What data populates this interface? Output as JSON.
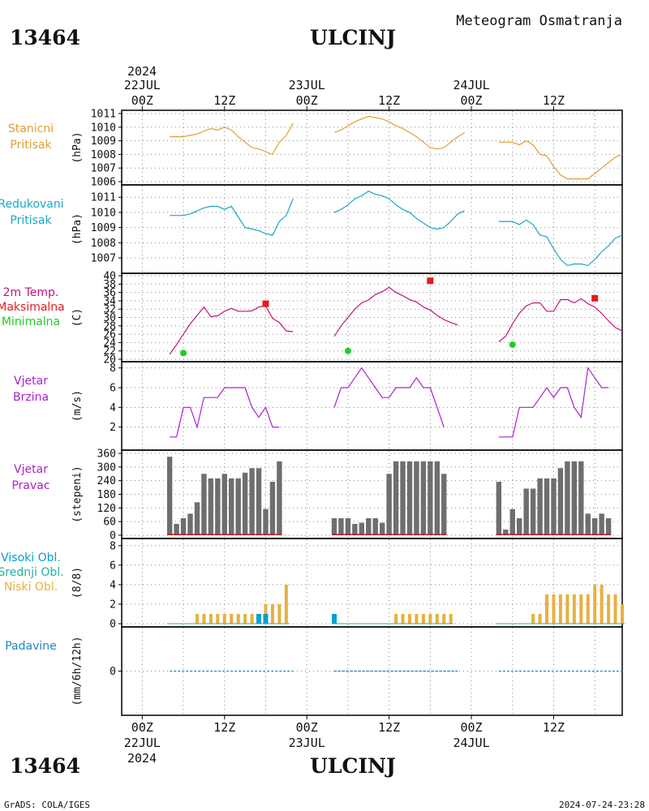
{
  "header": {
    "station_id": "13464",
    "station_name": "ULCINJ",
    "product": "Meteogram Osmatranja",
    "footer_left": "GrADS: COLA/IGES",
    "footer_right": "2024-07-24-23:28"
  },
  "time_axis": {
    "top_year": "2024",
    "bottom_year": "2024",
    "ticks": [
      {
        "h": 0,
        "label": "00Z",
        "date": "22JUL"
      },
      {
        "h": 12,
        "label": "12Z"
      },
      {
        "h": 24,
        "label": "00Z",
        "date": "23JUL"
      },
      {
        "h": 36,
        "label": "12Z"
      },
      {
        "h": 48,
        "label": "00Z",
        "date": "24JUL"
      },
      {
        "h": 60,
        "label": "12Z"
      }
    ],
    "range_hours": [
      -3,
      70
    ]
  },
  "colors": {
    "stanicni": "#e0a030",
    "redukovani": "#1aa6c8",
    "temp": "#c0157a",
    "tmax": "#e41a1c",
    "tmin": "#22cc22",
    "wind": "#aa22cc",
    "bars": "#6e6e6e",
    "high_cloud": "#00a0d0",
    "mid_cloud": "#20b0a0",
    "low_cloud": "#e8b040",
    "precip": "#1a88c0"
  },
  "chart_data": [
    {
      "type": "line",
      "panel": "stanicni",
      "label_lines": [
        "Stanicni",
        "Pritisak"
      ],
      "ylabel": "(hPa)",
      "ylim": [
        1006,
        1011
      ],
      "yticks": [
        1006,
        1007,
        1008,
        1009,
        1010,
        1011
      ],
      "series": [
        {
          "color": "stanicni",
          "segments": [
            {
              "start_h": 4,
              "values": [
                1009.3,
                1009.3,
                1009.3,
                1009.4,
                1009.5,
                1009.7,
                1009.9,
                1009.8,
                1010.0,
                1009.8,
                1009.3,
                1008.9,
                1008.5,
                1008.4,
                1008.2,
                1008.0,
                1008.9,
                1009.4,
                1010.3
              ]
            },
            {
              "start_h": 28,
              "values": [
                1009.6,
                1009.8,
                1010.1,
                1010.4,
                1010.6,
                1010.8,
                1010.7,
                1010.6,
                1010.4,
                1010.1,
                1009.9,
                1009.6,
                1009.3,
                1008.9,
                1008.5,
                1008.4,
                1008.5,
                1008.9,
                1009.3,
                1009.6
              ]
            },
            {
              "start_h": 52,
              "values": [
                1008.9,
                1008.9,
                1008.9,
                1008.7,
                1009.0,
                1008.7,
                1008.0,
                1007.9,
                1007.1,
                1006.5,
                1006.2,
                1006.2,
                1006.2,
                1006.2,
                1006.6,
                1007.0,
                1007.4,
                1007.8,
                1008.0
              ]
            }
          ]
        }
      ]
    },
    {
      "type": "line",
      "panel": "redukovani",
      "label_lines": [
        "Redukovani",
        "Pritisak"
      ],
      "ylabel": "(hPa)",
      "ylim": [
        1006.2,
        1011.6
      ],
      "yticks": [
        1007,
        1008,
        1009,
        1010,
        1011
      ],
      "series": [
        {
          "color": "redukovani",
          "segments": [
            {
              "start_h": 4,
              "values": [
                1009.8,
                1009.8,
                1009.8,
                1009.9,
                1010.1,
                1010.3,
                1010.4,
                1010.4,
                1010.2,
                1010.4,
                1009.7,
                1009.0,
                1008.9,
                1008.8,
                1008.6,
                1008.5,
                1009.4,
                1009.8,
                1010.9
              ]
            },
            {
              "start_h": 28,
              "values": [
                1010.0,
                1010.2,
                1010.5,
                1010.9,
                1011.1,
                1011.4,
                1011.2,
                1011.1,
                1010.9,
                1010.5,
                1010.2,
                1010.0,
                1009.6,
                1009.3,
                1009.0,
                1008.9,
                1009.0,
                1009.4,
                1009.9,
                1010.1
              ]
            },
            {
              "start_h": 52,
              "values": [
                1009.4,
                1009.4,
                1009.4,
                1009.2,
                1009.5,
                1009.2,
                1008.5,
                1008.4,
                1007.6,
                1006.9,
                1006.5,
                1006.6,
                1006.6,
                1006.5,
                1006.9,
                1007.4,
                1007.8,
                1008.3,
                1008.5
              ]
            }
          ]
        }
      ]
    },
    {
      "type": "line",
      "panel": "temperatura",
      "label_lines": [
        "2m Temp.",
        "Maksimalna",
        "Minimalna"
      ],
      "ylabel": "(C)",
      "ylim": [
        20,
        40
      ],
      "yticks": [
        20,
        22,
        24,
        26,
        28,
        30,
        32,
        34,
        36,
        38,
        40
      ],
      "series": [
        {
          "color": "temp",
          "segments": [
            {
              "start_h": 4,
              "values": [
                21.2,
                23.5,
                26.0,
                28.5,
                30.5,
                32.5,
                30.2,
                30.4,
                31.5,
                32.2,
                31.5,
                31.5,
                31.6,
                32.5,
                32.8,
                29.8,
                28.8,
                26.8,
                26.6
              ]
            },
            {
              "start_h": 28,
              "values": [
                25.5,
                28.0,
                30.0,
                32.0,
                33.5,
                34.2,
                35.5,
                36.2,
                37.2,
                36.0,
                35.2,
                34.3,
                33.7,
                32.5,
                31.8,
                30.5,
                29.5,
                28.8,
                28.2
              ]
            },
            {
              "start_h": 52,
              "values": [
                24.2,
                25.5,
                28.5,
                31.0,
                32.8,
                33.5,
                33.5,
                31.5,
                31.5,
                34.3,
                34.3,
                33.5,
                34.5,
                33.3,
                32.5,
                31.0,
                29.2,
                27.6,
                26.8
              ]
            }
          ]
        }
      ],
      "max_markers": [
        {
          "h": 18,
          "value": 33.3
        },
        {
          "h": 42,
          "value": 38.8
        },
        {
          "h": 66,
          "value": 34.6
        }
      ],
      "min_markers": [
        {
          "h": 6,
          "value": 21.5
        },
        {
          "h": 30,
          "value": 22.0
        },
        {
          "h": 54,
          "value": 23.5
        }
      ]
    },
    {
      "type": "line",
      "panel": "vjetar_brzina",
      "label_lines": [
        "Vjetar",
        "Brzina"
      ],
      "ylabel": "(m/s)",
      "ylim": [
        0,
        8.3
      ],
      "yticks": [
        2,
        4,
        6,
        8
      ],
      "series": [
        {
          "color": "wind",
          "segments": [
            {
              "start_h": 4,
              "values": [
                1,
                1,
                4,
                4,
                2,
                5,
                5,
                5,
                6,
                6,
                6,
                6,
                4,
                3,
                4,
                2,
                2
              ]
            },
            {
              "start_h": 28,
              "values": [
                4,
                6,
                6,
                7,
                8,
                7,
                6,
                5,
                5,
                6,
                6,
                6,
                7,
                6,
                6,
                4,
                2
              ]
            },
            {
              "start_h": 52,
              "values": [
                1,
                1,
                1,
                4,
                4,
                4,
                5,
                6,
                5,
                6,
                6,
                4,
                3,
                8,
                7,
                6,
                6
              ]
            }
          ]
        }
      ]
    },
    {
      "type": "bar",
      "panel": "vjetar_pravac",
      "label_lines": [
        "Vjetar",
        "Pravac"
      ],
      "ylabel": "(stepeni)",
      "ylim": [
        0,
        360
      ],
      "yticks": [
        0,
        60,
        120,
        180,
        240,
        300,
        360
      ],
      "series": [
        {
          "color": "bars",
          "segments": [
            {
              "start_h": 4,
              "values": [
                345,
                50,
                75,
                95,
                145,
                270,
                250,
                250,
                270,
                250,
                250,
                275,
                295,
                295,
                115,
                235,
                325
              ]
            },
            {
              "start_h": 28,
              "values": [
                75,
                75,
                75,
                50,
                55,
                75,
                75,
                55,
                270,
                325,
                325,
                325,
                325,
                325,
                325,
                325,
                270
              ]
            },
            {
              "start_h": 52,
              "values": [
                235,
                25,
                115,
                75,
                205,
                205,
                250,
                250,
                250,
                295,
                325,
                325,
                325,
                95,
                75,
                95,
                75
              ]
            }
          ]
        }
      ]
    },
    {
      "type": "bar",
      "panel": "oblacnost",
      "label_lines": [
        "Visoki Obl.",
        "Srednji Obl.",
        "Niski Obl."
      ],
      "ylabel": "(8/8)",
      "ylim": [
        0,
        8.4
      ],
      "yticks": [
        0,
        2,
        4,
        6,
        8
      ],
      "series": [
        {
          "name": "Niski Obl.",
          "color": "low_cloud",
          "segments": [
            {
              "start_h": 4,
              "values": [
                0,
                0,
                0,
                0,
                1,
                1,
                1,
                1,
                1,
                1,
                1,
                1,
                1,
                1,
                2,
                2,
                2,
                4
              ]
            },
            {
              "start_h": 28,
              "values": [
                0,
                0,
                0,
                0,
                0,
                0,
                0,
                0,
                0,
                1,
                1,
                1,
                1,
                1,
                1,
                1,
                1,
                1
              ]
            },
            {
              "start_h": 52,
              "values": [
                0,
                0,
                0,
                0,
                0,
                1,
                1,
                3,
                3,
                3,
                3,
                3,
                3,
                3,
                4,
                4,
                3,
                3,
                2
              ]
            }
          ]
        },
        {
          "name": "Visoki Obl.",
          "color": "high_cloud",
          "segments": [
            {
              "start_h": 17,
              "values": [
                1,
                1
              ]
            },
            {
              "start_h": 28,
              "values": [
                1
              ]
            }
          ]
        }
      ]
    },
    {
      "type": "line",
      "panel": "padavine",
      "label_lines": [
        "Padavine"
      ],
      "ylabel": "(mm/6h/12h)",
      "ylim": [
        -1,
        1
      ],
      "yticks": [
        0
      ],
      "series": [
        {
          "color": "precip",
          "segments": [
            {
              "start_h": 4,
              "values": [
                0,
                0,
                0,
                0,
                0,
                0,
                0,
                0,
                0,
                0,
                0,
                0,
                0,
                0,
                0,
                0,
                0,
                0,
                0
              ]
            },
            {
              "start_h": 28,
              "values": [
                0,
                0,
                0,
                0,
                0,
                0,
                0,
                0,
                0,
                0,
                0,
                0,
                0,
                0,
                0,
                0,
                0,
                0,
                0
              ]
            },
            {
              "start_h": 52,
              "values": [
                0,
                0,
                0,
                0,
                0,
                0,
                0,
                0,
                0,
                0,
                0,
                0,
                0,
                0,
                0,
                0,
                0,
                0,
                0
              ]
            }
          ]
        }
      ]
    }
  ]
}
